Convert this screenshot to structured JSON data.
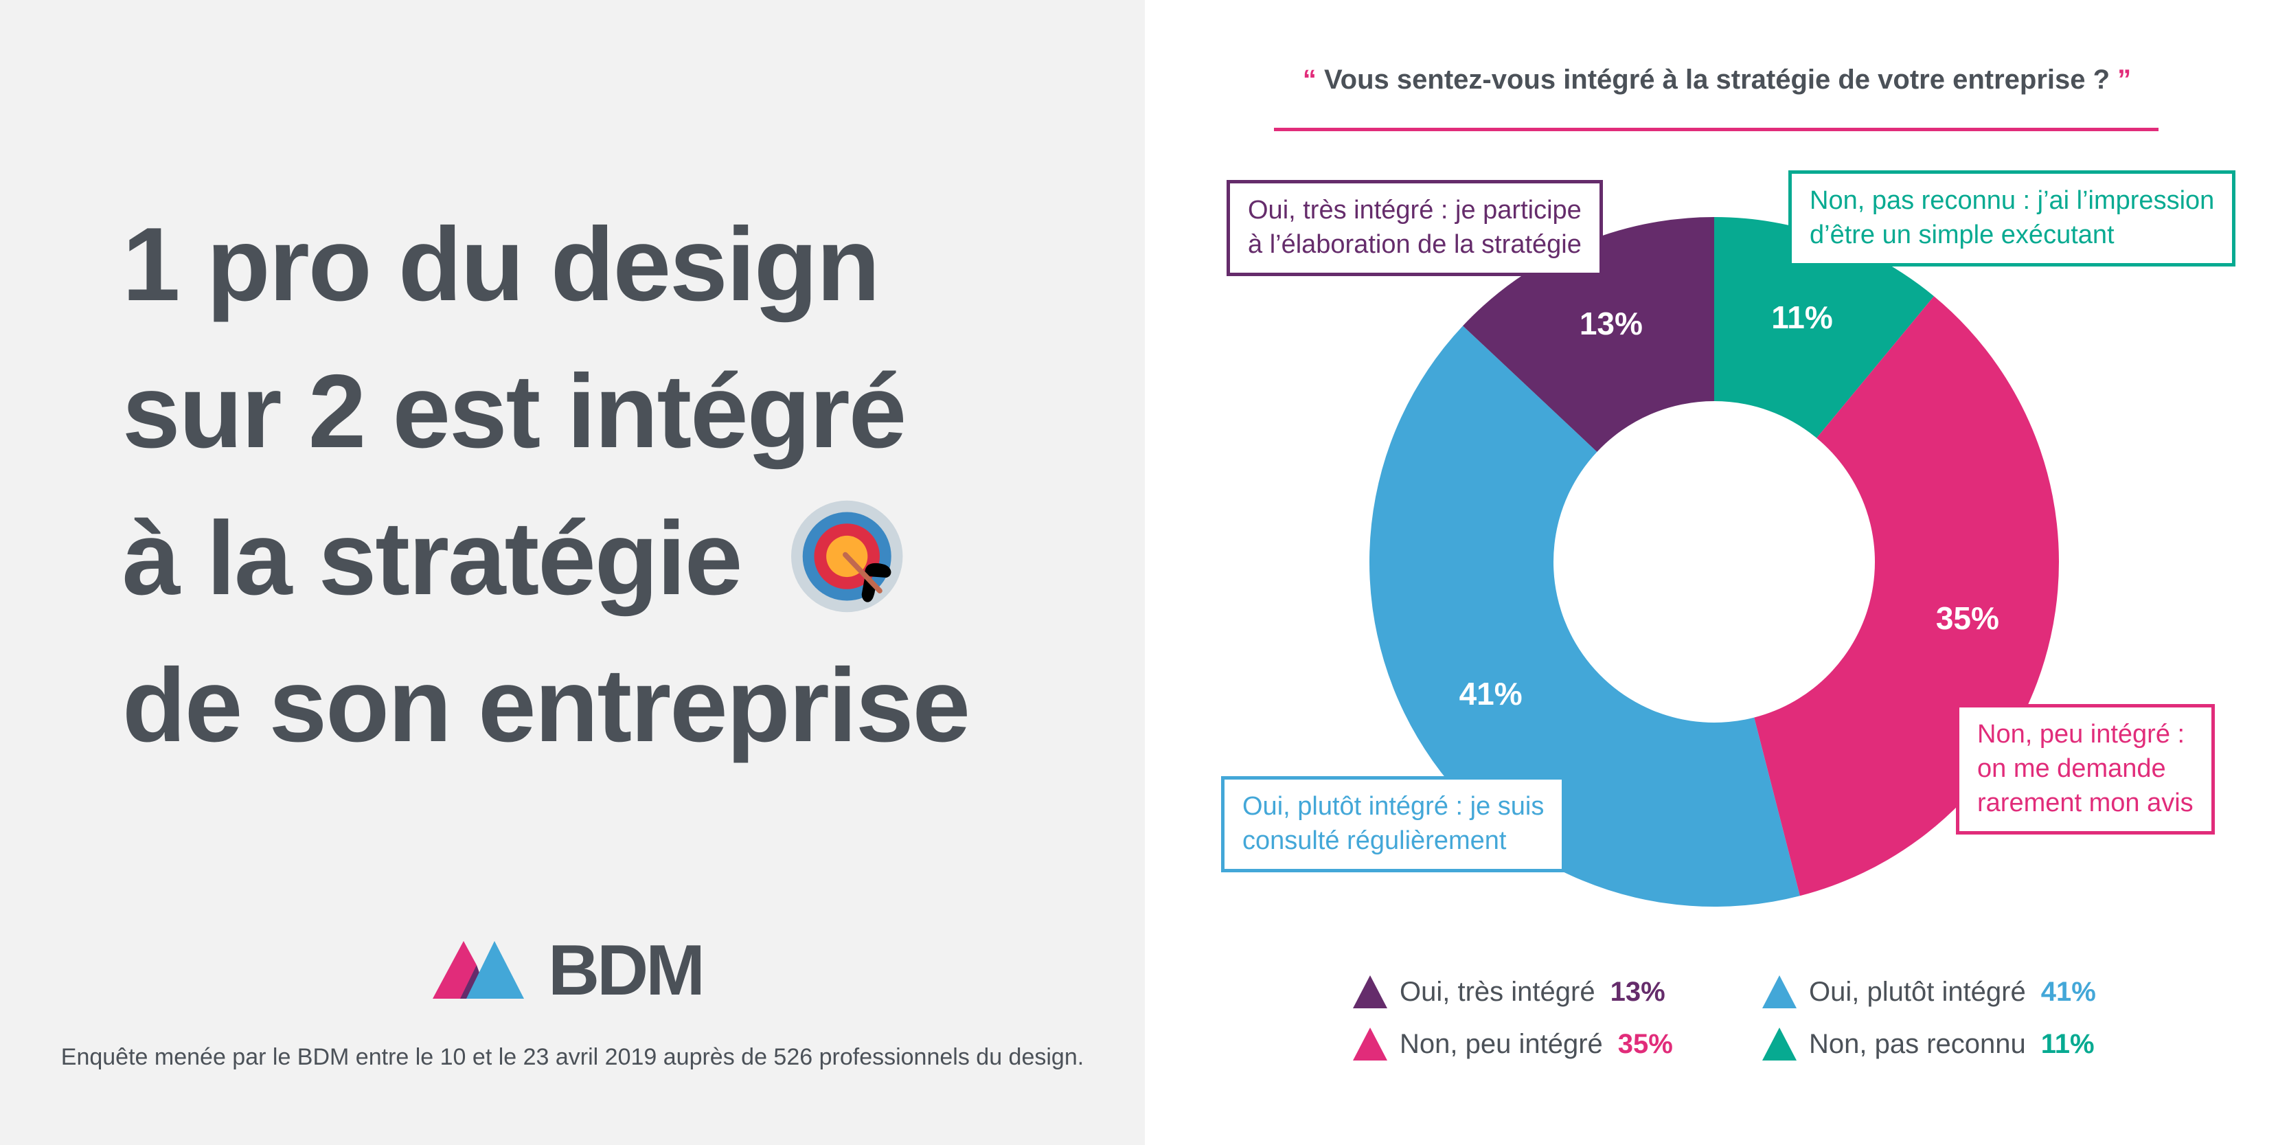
{
  "left_panel": {
    "headline_lines": [
      "1 pro du design",
      "sur 2 est intégré",
      "à la stratégie",
      "de son entreprise"
    ],
    "headline_icon": "direct-hit-target-icon",
    "logo": {
      "text": "BDM",
      "mark_colors": [
        "#e12c7a",
        "#652c6b",
        "#43a7d8"
      ]
    },
    "footnote": "Enquête menée par le BDM entre le 10 et le 23 avril 2019 auprès de 526 professionnels du design."
  },
  "question": {
    "open_quote": "“",
    "text": "Vous sentez-vous intégré à la stratégie de votre entreprise ?",
    "close_quote": "”"
  },
  "callouts": {
    "tres_integre": [
      "Oui, très intégré : je participe",
      "à l’élaboration de la stratégie"
    ],
    "pas_reconnu": [
      "Non, pas reconnu : j’ai l’impression",
      "d’être un simple exécutant"
    ],
    "peu_integre": [
      "Non, peu intégré :",
      "on me demande",
      "rarement mon avis"
    ],
    "plutot_integre": [
      "Oui, plutôt intégré : je suis",
      "consulté régulièrement"
    ]
  },
  "legend": [
    {
      "label": "Oui, très intégré",
      "value": "13%",
      "color": "#652c6b"
    },
    {
      "label": "Oui, plutôt intégré",
      "value": "41%",
      "color": "#43a7d8"
    },
    {
      "label": "Non, peu intégré",
      "value": "35%",
      "color": "#e12c7a"
    },
    {
      "label": "Non, pas reconnu",
      "value": "11%",
      "color": "#07aa91"
    }
  ],
  "chart_data": {
    "type": "pie",
    "variant": "donut",
    "title": "Vous sentez-vous intégré à la stratégie de votre entreprise ?",
    "start": "12 o'clock, clockwise",
    "legend_position": "bottom",
    "categories": [
      "Non, pas reconnu",
      "Non, peu intégré",
      "Oui, plutôt intégré",
      "Oui, très intégré"
    ],
    "values": [
      11,
      35,
      41,
      13
    ],
    "labels": [
      "11%",
      "35%",
      "41%",
      "13%"
    ],
    "colors": [
      "#07aa91",
      "#e12c7a",
      "#43a7d8",
      "#652c6b"
    ],
    "unit": "%"
  }
}
